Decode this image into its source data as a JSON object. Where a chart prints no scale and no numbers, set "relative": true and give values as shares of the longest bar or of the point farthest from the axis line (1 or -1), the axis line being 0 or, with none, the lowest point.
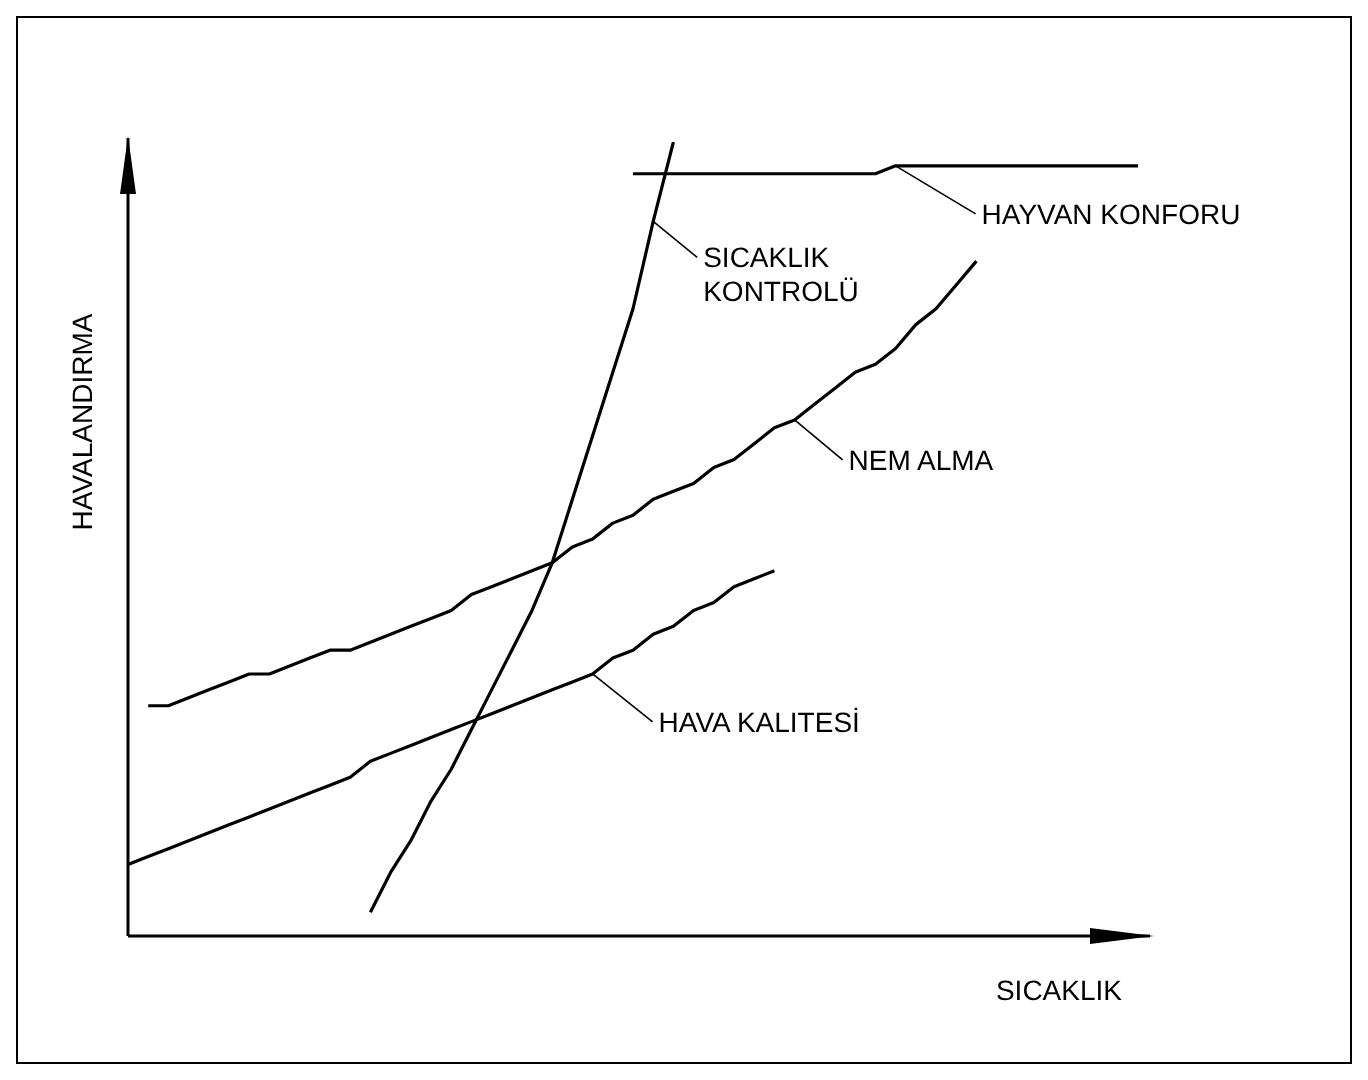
{
  "chart_data": {
    "type": "line",
    "relative": true,
    "xlabel": "SICAKLIK",
    "ylabel": "HAVALANDIRMA",
    "categories": [
      null,
      null,
      null,
      null,
      null,
      null,
      null,
      null,
      null,
      null,
      null,
      null,
      null,
      null,
      null,
      null,
      null,
      null,
      null,
      null,
      null,
      null,
      null,
      null,
      null,
      null,
      null,
      null,
      null,
      null,
      null,
      null,
      null,
      null,
      null,
      null,
      null,
      null,
      null,
      null,
      null,
      null,
      null,
      null,
      null,
      null,
      null,
      null,
      null,
      null,
      null
    ],
    "series": [
      {
        "name": "SICAKLIK KONTROLÜ",
        "color": "#000000",
        "values": [
          null,
          null,
          null,
          null,
          null,
          null,
          null,
          null,
          null,
          null,
          null,
          null,
          0.03,
          0.08,
          0.12,
          0.17,
          0.21,
          0.26,
          0.31,
          0.36,
          0.41,
          0.47,
          0.55,
          0.63,
          0.71,
          0.79,
          0.9,
          1.0,
          null,
          null,
          null,
          null,
          null,
          null,
          null,
          null,
          null,
          null,
          null,
          null,
          null,
          null,
          null,
          null,
          null,
          null,
          null,
          null,
          null,
          null,
          null
        ]
      },
      {
        "name": "HAYVAN KONFORU",
        "color": "#000000",
        "values": [
          null,
          null,
          null,
          null,
          null,
          null,
          null,
          null,
          null,
          null,
          null,
          null,
          null,
          null,
          null,
          null,
          null,
          null,
          null,
          null,
          null,
          null,
          null,
          null,
          null,
          0.96,
          0.96,
          0.96,
          0.96,
          0.96,
          0.96,
          0.96,
          0.96,
          0.96,
          0.96,
          0.96,
          0.96,
          0.96,
          0.97,
          0.97,
          0.97,
          0.97,
          0.97,
          0.97,
          0.97,
          0.97,
          0.97,
          0.97,
          0.97,
          0.97,
          0.97
        ]
      },
      {
        "name": "NEM ALMA",
        "color": "#000000",
        "values": [
          null,
          0.29,
          0.29,
          0.3,
          0.31,
          0.32,
          0.33,
          0.33,
          0.34,
          0.35,
          0.36,
          0.36,
          0.37,
          0.38,
          0.39,
          0.4,
          0.41,
          0.43,
          0.44,
          0.45,
          0.46,
          0.47,
          0.49,
          0.5,
          0.52,
          0.53,
          0.55,
          0.56,
          0.57,
          0.59,
          0.6,
          0.62,
          0.64,
          0.65,
          0.67,
          0.69,
          0.71,
          0.72,
          0.74,
          0.77,
          0.79,
          0.82,
          0.85,
          null,
          null,
          null,
          null,
          null,
          null,
          null,
          null
        ]
      },
      {
        "name": "HAVA KALITESİ",
        "color": "#000000",
        "values": [
          0.09,
          0.1,
          0.11,
          0.12,
          0.13,
          0.14,
          0.15,
          0.16,
          0.17,
          0.18,
          0.19,
          0.2,
          0.22,
          0.23,
          0.24,
          0.25,
          0.26,
          0.27,
          0.28,
          0.29,
          0.3,
          0.31,
          0.32,
          0.33,
          0.35,
          0.36,
          0.38,
          0.39,
          0.41,
          0.42,
          0.44,
          0.45,
          0.46,
          null,
          null,
          null,
          null,
          null,
          null,
          null,
          null,
          null,
          null,
          null,
          null,
          null,
          null,
          null,
          null,
          null,
          null
        ]
      }
    ]
  }
}
